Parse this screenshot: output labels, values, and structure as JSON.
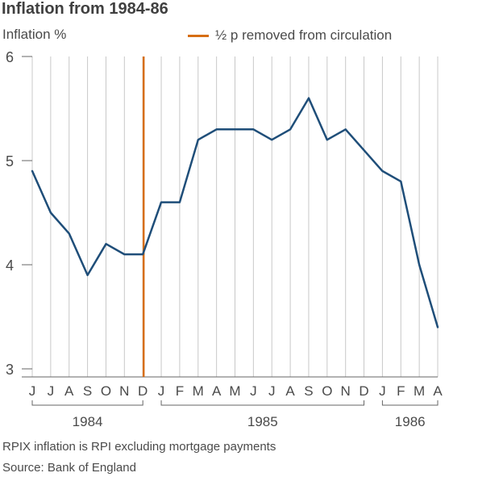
{
  "title": "Inflation from 1984-86",
  "y_axis_label": "Inflation %",
  "legend": {
    "label": "½ p removed from circulation",
    "color": "#d66e14"
  },
  "colors": {
    "line": "#1f4e79",
    "grid": "#c8c8c8",
    "axis": "#666666"
  },
  "chart_data": {
    "type": "line",
    "title": "Inflation from 1984-86",
    "ylabel": "Inflation %",
    "xlabel": "",
    "ylim": [
      3,
      6
    ],
    "yticks": [
      3,
      4,
      5,
      6
    ],
    "grid": true,
    "legend_position": "top-right",
    "categories": [
      "J",
      "J",
      "A",
      "S",
      "O",
      "N",
      "D",
      "J",
      "F",
      "M",
      "A",
      "M",
      "J",
      "J",
      "A",
      "S",
      "O",
      "N",
      "D",
      "J",
      "F",
      "M",
      "A"
    ],
    "series": [
      {
        "values": [
          4.9,
          4.5,
          4.3,
          3.9,
          4.2,
          4.1,
          4.1,
          4.6,
          4.6,
          5.2,
          5.3,
          5.3,
          5.3,
          5.2,
          5.3,
          5.6,
          5.2,
          5.3,
          5.1,
          4.9,
          4.8,
          4.0,
          3.4
        ]
      }
    ],
    "year_groups": [
      {
        "label": "1984",
        "start": 0,
        "end": 6
      },
      {
        "label": "1985",
        "start": 7,
        "end": 18
      },
      {
        "label": "1986",
        "start": 19,
        "end": 22
      }
    ],
    "annotations": [
      {
        "type": "vertical_line",
        "x_index": 6,
        "label": "½ p removed from circulation"
      }
    ]
  },
  "footer": {
    "note": "RPIX inflation is RPI excluding mortgage payments",
    "source": "Source: Bank of England"
  }
}
